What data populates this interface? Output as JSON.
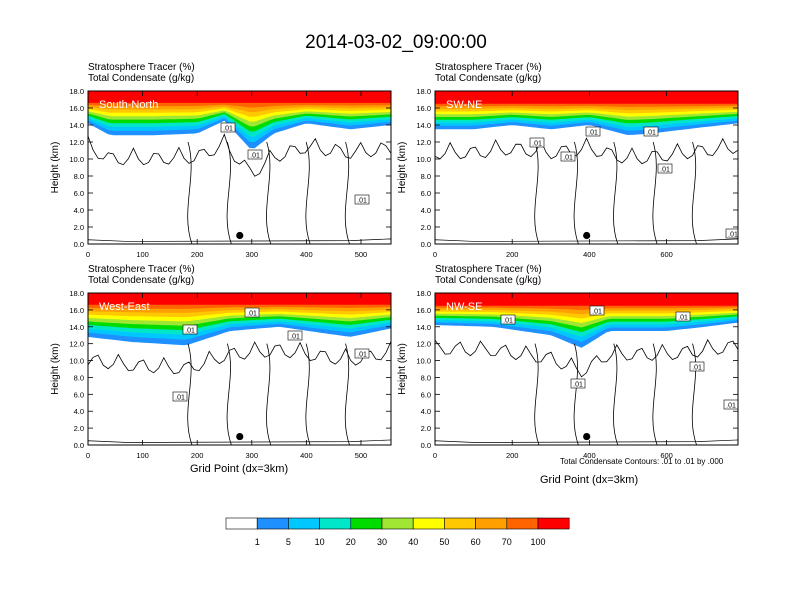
{
  "title": "2014-03-02_09:00:00",
  "header_line1": "Stratosphere Tracer   (%)",
  "header_line2": "Total Condensate   (g/kg)",
  "contour_note": "Total Condensate Contours: .01 to .01 by .000",
  "colorbar": {
    "labels": [
      "1",
      "5",
      "10",
      "20",
      "30",
      "40",
      "50",
      "60",
      "70",
      "100"
    ],
    "colors": [
      "#ffffff",
      "#1e90ff",
      "#00c8ff",
      "#00e6c8",
      "#00dc00",
      "#a0e632",
      "#ffff00",
      "#ffc800",
      "#ffa000",
      "#ff6400",
      "#ff0000"
    ]
  },
  "chart_data": [
    {
      "type": "heatmap",
      "panel_label": "South-North",
      "ylabel": "Height (km)",
      "xlabel": "",
      "xlim": [
        0,
        555
      ],
      "xticks": [
        "0",
        "100",
        "200",
        "300",
        "400",
        "500"
      ],
      "ylim": [
        0,
        18
      ],
      "yticks": [
        "0.0",
        "2.0",
        "4.0",
        "6.0",
        "8.0",
        "10.0",
        "12.0",
        "14.0",
        "16.0",
        "18.0"
      ],
      "contour_labels": [
        ".01",
        ".01",
        ".01"
      ],
      "marker_x": 278,
      "band": {
        "red_base_km": 16.6,
        "blue_base_km": [
          [
            0,
            14.2
          ],
          [
            40,
            12.8
          ],
          [
            120,
            12.8
          ],
          [
            200,
            13.0
          ],
          [
            250,
            14.5
          ],
          [
            300,
            11.0
          ],
          [
            340,
            13.0
          ],
          [
            400,
            14.2
          ],
          [
            480,
            13.5
          ],
          [
            555,
            14.0
          ]
        ]
      }
    },
    {
      "type": "heatmap",
      "panel_label": "SW-NE",
      "ylabel": "Height (km)",
      "xlabel": "",
      "xlim": [
        0,
        785
      ],
      "xticks": [
        "0",
        "200",
        "400",
        "600"
      ],
      "ylim": [
        0,
        18
      ],
      "yticks": [
        "0.0",
        "2.0",
        "4.0",
        "6.0",
        "8.0",
        "10.0",
        "12.0",
        "14.0",
        "16.0",
        "18.0"
      ],
      "contour_labels": [
        ".01",
        ".01",
        ".01",
        ".01",
        ".01",
        ".01"
      ],
      "marker_x": 393,
      "band": {
        "red_base_km": 16.5,
        "blue_base_km": [
          [
            0,
            13.5
          ],
          [
            100,
            13.5
          ],
          [
            200,
            14.0
          ],
          [
            300,
            13.5
          ],
          [
            400,
            14.0
          ],
          [
            500,
            12.8
          ],
          [
            560,
            13.0
          ],
          [
            650,
            13.5
          ],
          [
            785,
            14.2
          ]
        ]
      }
    },
    {
      "type": "heatmap",
      "panel_label": "West-East",
      "ylabel": "Height (km)",
      "xlabel": "Grid Point (dx=3km)",
      "xlim": [
        0,
        555
      ],
      "xticks": [
        "0",
        "100",
        "200",
        "300",
        "400",
        "500"
      ],
      "ylim": [
        0,
        18
      ],
      "yticks": [
        "0.0",
        "2.0",
        "4.0",
        "6.0",
        "8.0",
        "10.0",
        "12.0",
        "14.0",
        "16.0",
        "18.0"
      ],
      "contour_labels": [
        ".01",
        ".01",
        ".01",
        ".01",
        ".01"
      ],
      "marker_x": 278,
      "band": {
        "red_base_km": 16.6,
        "blue_base_km": [
          [
            0,
            12.8
          ],
          [
            80,
            12.2
          ],
          [
            180,
            11.8
          ],
          [
            260,
            13.5
          ],
          [
            350,
            14.0
          ],
          [
            480,
            12.8
          ],
          [
            555,
            13.8
          ]
        ]
      }
    },
    {
      "type": "heatmap",
      "panel_label": "NW-SE",
      "ylabel": "Height (km)",
      "xlabel": "Grid Point (dx=3km)",
      "xlim": [
        0,
        785
      ],
      "xticks": [
        "0",
        "200",
        "400",
        "600"
      ],
      "ylim": [
        0,
        18
      ],
      "yticks": [
        "0.0",
        "2.0",
        "4.0",
        "6.0",
        "8.0",
        "10.0",
        "12.0",
        "14.0",
        "16.0",
        "18.0"
      ],
      "contour_labels": [
        ".01",
        ".01",
        ".01",
        ".01",
        ".01",
        ".01",
        ".01"
      ],
      "marker_x": 393,
      "band": {
        "red_base_km": 16.5,
        "blue_base_km": [
          [
            0,
            14.2
          ],
          [
            150,
            14.0
          ],
          [
            300,
            13.0
          ],
          [
            380,
            11.5
          ],
          [
            450,
            13.5
          ],
          [
            600,
            13.5
          ],
          [
            700,
            14.0
          ],
          [
            785,
            14.5
          ]
        ]
      }
    }
  ]
}
